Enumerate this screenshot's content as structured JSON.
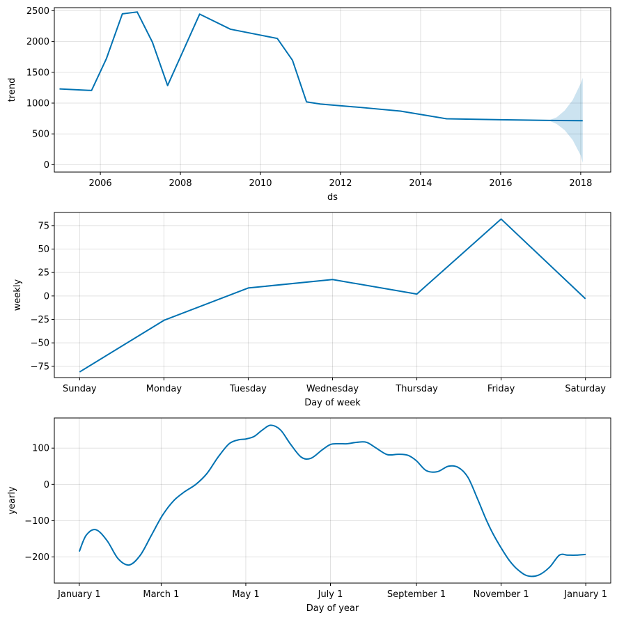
{
  "chart_data": [
    {
      "type": "line",
      "xlabel": "ds",
      "ylabel": "trend",
      "xlim": [
        2004.85,
        2018.75
      ],
      "ylim": [
        -120,
        2550
      ],
      "xticks": [
        2006,
        2008,
        2010,
        2012,
        2014,
        2016,
        2018
      ],
      "xtick_labels": [
        "2006",
        "2008",
        "2010",
        "2012",
        "2014",
        "2016",
        "2018"
      ],
      "yticks": [
        0,
        500,
        1000,
        1500,
        2000,
        2500
      ],
      "ytick_labels": [
        "0",
        "500",
        "1000",
        "1500",
        "2000",
        "2500"
      ],
      "grid": true,
      "series": [
        {
          "name": "trend",
          "color": "#0072B2",
          "x": [
            2004.98,
            2005.78,
            2006.15,
            2006.55,
            2006.92,
            2007.3,
            2007.68,
            2008.48,
            2009.25,
            2010.42,
            2010.8,
            2011.15,
            2011.5,
            2012.5,
            2013.5,
            2014.65,
            2016.0,
            2017.2,
            2018.05
          ],
          "values": [
            1230,
            1205,
            1720,
            2450,
            2480,
            1990,
            1285,
            2445,
            2200,
            2050,
            1695,
            1020,
            985,
            930,
            870,
            745,
            730,
            718,
            715
          ]
        }
      ],
      "uncertainty_band": {
        "color": "#0072B2",
        "x": [
          2017.2,
          2017.4,
          2017.6,
          2017.8,
          2018.0,
          2018.05
        ],
        "upper": [
          718,
          770,
          880,
          1050,
          1320,
          1410
        ],
        "lower": [
          718,
          660,
          560,
          400,
          150,
          30
        ]
      }
    },
    {
      "type": "line",
      "xlabel": "Day of week",
      "ylabel": "weekly",
      "xlim": [
        -0.3,
        6.3
      ],
      "ylim": [
        -87,
        89
      ],
      "categories": [
        "Sunday",
        "Monday",
        "Tuesday",
        "Wednesday",
        "Thursday",
        "Friday",
        "Saturday"
      ],
      "yticks": [
        -75,
        -50,
        -25,
        0,
        25,
        50,
        75
      ],
      "ytick_labels": [
        "−75",
        "−50",
        "−25",
        "0",
        "25",
        "50",
        "75"
      ],
      "grid": true,
      "series": [
        {
          "name": "weekly",
          "color": "#0072B2",
          "values": [
            -81,
            -26,
            8.5,
            17.5,
            2,
            82,
            -3
          ]
        }
      ]
    },
    {
      "type": "line",
      "xlabel": "Day of year",
      "ylabel": "yearly",
      "xlim": [
        -18,
        383
      ],
      "ylim": [
        -272,
        183
      ],
      "xticks": [
        0,
        59,
        120,
        181,
        243,
        304,
        365
      ],
      "xtick_labels": [
        "January 1",
        "March 1",
        "May 1",
        "July 1",
        "September 1",
        "November 1",
        "January 1"
      ],
      "yticks": [
        -200,
        -100,
        0,
        100
      ],
      "ytick_labels": [
        "−200",
        "−100",
        "0",
        "100"
      ],
      "grid": true,
      "series": [
        {
          "name": "yearly",
          "color": "#0072B2",
          "x": [
            0,
            5,
            12,
            20,
            28,
            36,
            44,
            52,
            60,
            68,
            76,
            84,
            92,
            100,
            108,
            115,
            120,
            126,
            132,
            138,
            145,
            152,
            160,
            167,
            175,
            181,
            187,
            193,
            200,
            207,
            214,
            222,
            230,
            237,
            243,
            250,
            258,
            266,
            273,
            280,
            287,
            293,
            298,
            304,
            310,
            316,
            323,
            331,
            339,
            346,
            352,
            358,
            365
          ],
          "values": [
            -185,
            -140,
            -125,
            -155,
            -205,
            -222,
            -195,
            -140,
            -85,
            -45,
            -20,
            0,
            30,
            75,
            112,
            123,
            125,
            132,
            150,
            163,
            150,
            112,
            75,
            72,
            95,
            110,
            112,
            112,
            116,
            116,
            100,
            82,
            83,
            80,
            65,
            38,
            35,
            50,
            47,
            20,
            -40,
            -95,
            -135,
            -175,
            -210,
            -235,
            -252,
            -250,
            -228,
            -195,
            -195,
            -195,
            -193
          ]
        }
      ]
    }
  ]
}
